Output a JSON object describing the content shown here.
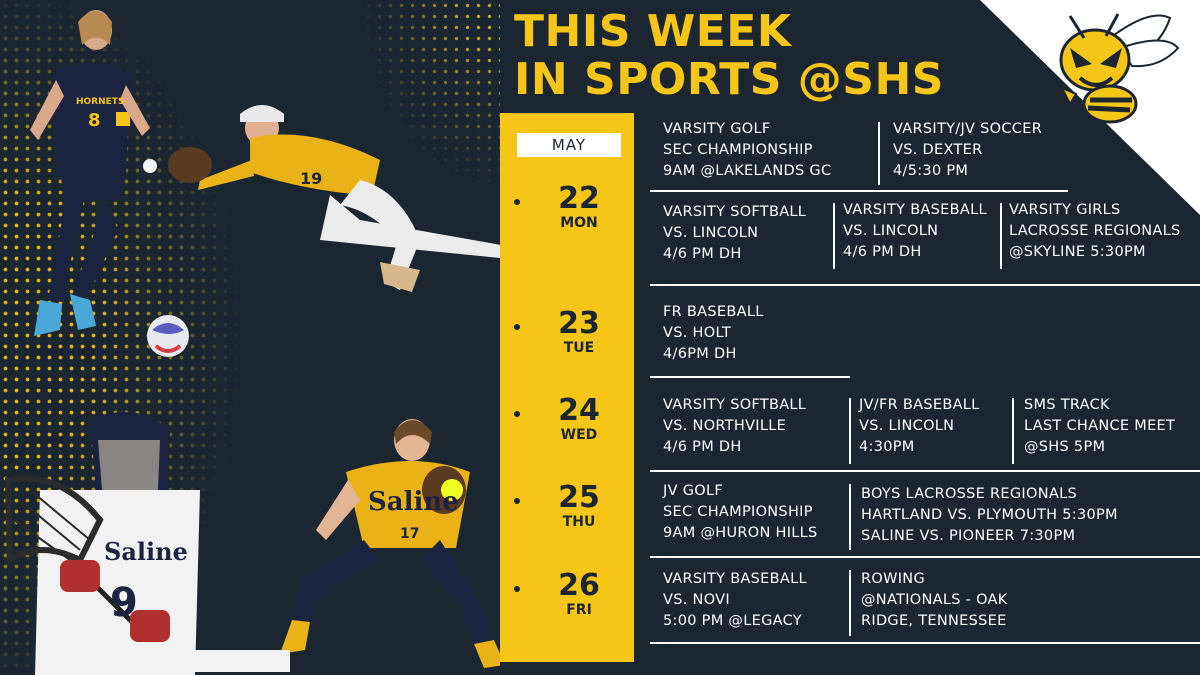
{
  "title": {
    "line1": "THIS WEEK",
    "line2": "IN SPORTS @SHS"
  },
  "logo": {
    "icon": "hornet-mascot-icon"
  },
  "month": "MAY",
  "colors": {
    "background": "#1b2631",
    "accent": "#f5c518",
    "text": "#ffffff"
  },
  "days": [
    {
      "num": "22",
      "dow": "MON",
      "rows": [
        [
          {
            "lines": [
              "VARSITY GOLF",
              "SEC CHAMPIONSHIP",
              "9AM @LAKELANDS GC"
            ]
          },
          {
            "lines": [
              "VARSITY/JV SOCCER",
              "VS. DEXTER",
              "4/5:30 PM"
            ]
          }
        ],
        [
          {
            "lines": [
              "VARSITY SOFTBALL",
              "VS. LINCOLN",
              "4/6 PM DH"
            ]
          },
          {
            "lines": [
              "VARSITY BASEBALL",
              "VS. LINCOLN",
              "4/6 PM DH"
            ]
          },
          {
            "lines": [
              "VARSITY GIRLS",
              "LACROSSE REGIONALS",
              "@SKYLINE 5:30PM"
            ]
          }
        ]
      ]
    },
    {
      "num": "23",
      "dow": "TUE",
      "rows": [
        [
          {
            "lines": [
              "FR BASEBALL",
              "VS. HOLT",
              "4/6PM DH"
            ]
          }
        ]
      ]
    },
    {
      "num": "24",
      "dow": "WED",
      "rows": [
        [
          {
            "lines": [
              "VARSITY SOFTBALL",
              "VS. NORTHVILLE",
              "4/6 PM DH"
            ]
          },
          {
            "lines": [
              "JV/FR BASEBALL",
              "VS. LINCOLN",
              "4:30PM"
            ]
          },
          {
            "lines": [
              "SMS TRACK",
              "LAST CHANCE MEET",
              "@SHS 5PM"
            ]
          }
        ]
      ]
    },
    {
      "num": "25",
      "dow": "THU",
      "rows": [
        [
          {
            "lines": [
              "JV GOLF",
              "SEC CHAMPIONSHIP",
              "9AM @HURON HILLS"
            ]
          },
          {
            "lines": [
              "BOYS LACROSSE REGIONALS",
              "HARTLAND VS. PLYMOUTH 5:30PM",
              "SALINE VS. PIONEER 7:30PM"
            ]
          }
        ]
      ]
    },
    {
      "num": "26",
      "dow": "FRI",
      "rows": [
        [
          {
            "lines": [
              "VARSITY BASEBALL",
              "VS. NOVI",
              "5:00 PM @LEGACY"
            ]
          },
          {
            "lines": [
              "ROWING",
              "@NATIONALS - OAK",
              "RIDGE, TENNESSEE"
            ]
          }
        ]
      ]
    }
  ],
  "photos": {
    "soccer_jersey": "HORNETS",
    "soccer_number": "8",
    "baseball_number": "19",
    "lacrosse_jersey": "Saline",
    "lacrosse_number": "9",
    "softball_jersey": "Saline",
    "softball_number": "17"
  }
}
